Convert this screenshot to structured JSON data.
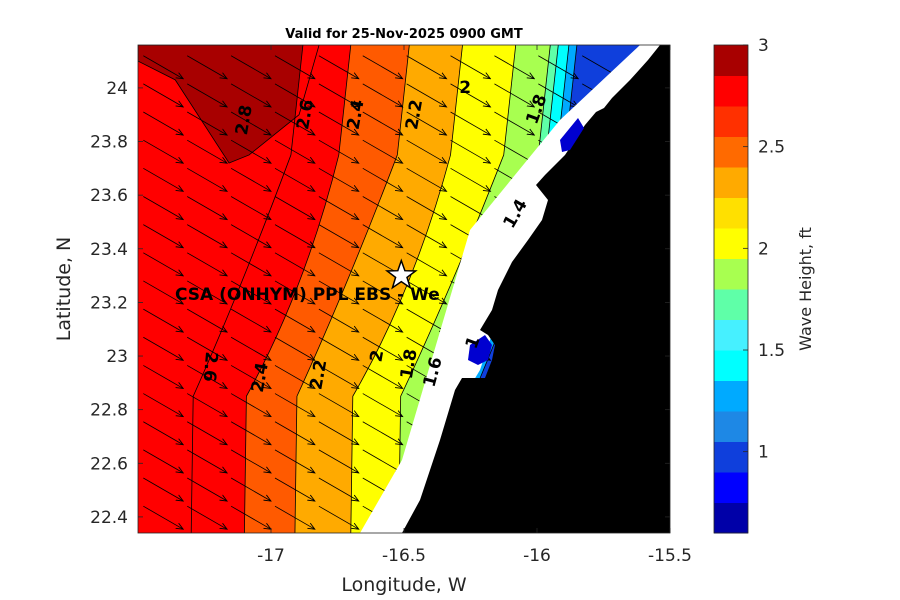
{
  "chart_data": {
    "type": "heatmap",
    "title": "Valid for 25-Nov-2025 0900 GMT",
    "xlabel": "Longitude, W",
    "ylabel": "Latitude, N",
    "xlim": [
      -17.5,
      -15.5
    ],
    "ylim": [
      22.34,
      24.16
    ],
    "x_ticks": [
      {
        "value": -17,
        "label": "-17"
      },
      {
        "value": -16.5,
        "label": "-16.5"
      },
      {
        "value": -16,
        "label": "-16"
      },
      {
        "value": -15.5,
        "label": "-15.5"
      }
    ],
    "y_ticks": [
      {
        "value": 22.4,
        "label": "22.4"
      },
      {
        "value": 22.6,
        "label": "22.6"
      },
      {
        "value": 22.8,
        "label": "22.8"
      },
      {
        "value": 23,
        "label": "23"
      },
      {
        "value": 23.2,
        "label": "23.2"
      },
      {
        "value": 23.4,
        "label": "23.4"
      },
      {
        "value": 23.6,
        "label": "23.6"
      },
      {
        "value": 23.8,
        "label": "23.8"
      },
      {
        "value": 24,
        "label": "24"
      }
    ],
    "colorbar": {
      "label": "Wave Height, ft",
      "range": [
        0.6,
        3
      ],
      "levels": [
        0.6,
        0.75,
        0.9,
        1.05,
        1.2,
        1.35,
        1.5,
        1.65,
        1.8,
        1.95,
        2.1,
        2.25,
        2.4,
        2.55,
        2.7,
        2.85,
        3.0
      ],
      "colors": [
        "#0000a8",
        "#0000ff",
        "#0f3fdc",
        "#1e88e5",
        "#00aaff",
        "#00ffff",
        "#46f0ff",
        "#5fffa8",
        "#a8ff50",
        "#ffff00",
        "#ffe000",
        "#ffaa00",
        "#ff6a00",
        "#ff3000",
        "#ff0000",
        "#a80000"
      ],
      "ticks": [
        {
          "value": 1,
          "label": "1"
        },
        {
          "value": 1.5,
          "label": "1.5"
        },
        {
          "value": 2,
          "label": "2"
        },
        {
          "value": 2.5,
          "label": "2.5"
        },
        {
          "value": 3,
          "label": "3"
        }
      ]
    },
    "bands": [
      {
        "value": 2.8,
        "color": "#a80000",
        "north_lon": -17.12,
        "south_lon": -17.12,
        "note": "lobe in NW corner"
      },
      {
        "value": 2.6,
        "color": "#ff0000",
        "north_lon": -16.88,
        "south_lon": -17.3
      },
      {
        "value": 2.4,
        "color": "#ff5a00",
        "north_lon": -16.7,
        "south_lon": -17.1
      },
      {
        "value": 2.2,
        "color": "#ffaa00",
        "north_lon": -16.48,
        "south_lon": -16.91
      },
      {
        "value": 2.0,
        "color": "#ffff00",
        "north_lon": -16.28,
        "south_lon": -16.7
      },
      {
        "value": 1.8,
        "color": "#a8ff50",
        "north_lon": -16.08,
        "south_lon": -16.52
      },
      {
        "value": 1.6,
        "color": "#5fffa8",
        "north_lon": -15.95,
        "south_lon": -16.42
      },
      {
        "value": 1.4,
        "color": "#00ffff",
        "north_lon": -15.92,
        "south_lon": -16.35
      },
      {
        "value": 1.2,
        "color": "#00aaff",
        "north_lon": -15.88,
        "south_lon": -16.3
      },
      {
        "value": 1.0,
        "color": "#0f3fdc",
        "north_lon": -15.85,
        "south_lon": -16.25
      }
    ],
    "contour_labels": [
      {
        "text": "2.8",
        "lon": -17.1,
        "lat": 23.88,
        "angle": -80
      },
      {
        "text": "2.6",
        "lon": -16.87,
        "lat": 23.9,
        "angle": -80
      },
      {
        "text": "2.4",
        "lon": -16.68,
        "lat": 23.9,
        "angle": -80
      },
      {
        "text": "2.2",
        "lon": -16.46,
        "lat": 23.9,
        "angle": -80
      },
      {
        "text": "2",
        "lon": -16.27,
        "lat": 24.0,
        "angle": 0
      },
      {
        "text": "1.8",
        "lon": -16.0,
        "lat": 23.92,
        "angle": -70
      },
      {
        "text": "1.4",
        "lon": -16.08,
        "lat": 23.53,
        "angle": -60
      },
      {
        "text": "2.6",
        "lon": -17.23,
        "lat": 22.96,
        "angle": 95
      },
      {
        "text": "2.4",
        "lon": -17.04,
        "lat": 22.92,
        "angle": -80
      },
      {
        "text": "2.2",
        "lon": -16.82,
        "lat": 22.93,
        "angle": -80
      },
      {
        "text": "2",
        "lon": -16.6,
        "lat": 23.0,
        "angle": -80
      },
      {
        "text": "1.8",
        "lon": -16.48,
        "lat": 22.97,
        "angle": -80
      },
      {
        "text": "1.6",
        "lon": -16.39,
        "lat": 22.94,
        "angle": -75
      },
      {
        "text": "1",
        "lon": -16.24,
        "lat": 23.05,
        "angle": -70
      }
    ],
    "station": {
      "label": "CSA (ONHYM) PPL EBS - We",
      "lon": -16.51,
      "lat": 23.3
    },
    "vectors": {
      "direction_deg": 120,
      "description": "wave direction arrows toward SE on a regular grid"
    },
    "land_color": "#000000"
  }
}
